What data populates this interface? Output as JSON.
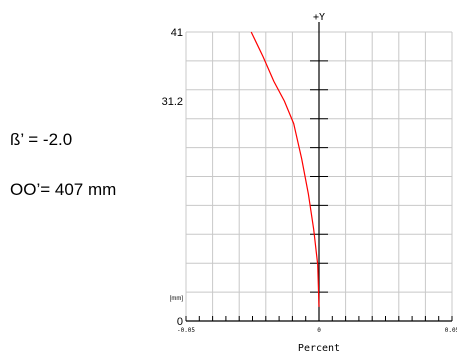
{
  "annotations": {
    "magnification": "ß’ = -2.0",
    "object_distance": "OO’= 407 mm"
  },
  "chart_data": {
    "type": "line",
    "title": "",
    "xlabel": "Percent",
    "ylabel": "+Y",
    "y_unit": "[mm]",
    "xlim": [
      -0.05,
      0.05
    ],
    "ylim": [
      0,
      41
    ],
    "x_tick_labels": [
      {
        "value": -0.05,
        "label": "-0.05"
      },
      {
        "value": 0,
        "label": "0"
      },
      {
        "value": 0.05,
        "label": "0.05"
      }
    ],
    "y_tick_labels": [
      {
        "value": 0,
        "label": "0"
      },
      {
        "value": 31.2,
        "label": "31.2"
      },
      {
        "value": 41,
        "label": "41"
      }
    ],
    "grid": true,
    "series": [
      {
        "color": "#ff0000",
        "x": [
          0,
          -0.0005,
          -0.002,
          -0.004,
          -0.0065,
          -0.0095,
          -0.013,
          -0.017,
          -0.021,
          -0.0255
        ],
        "y": [
          2,
          8,
          13,
          18,
          23,
          28,
          31.2,
          34,
          37.5,
          41
        ]
      }
    ]
  }
}
